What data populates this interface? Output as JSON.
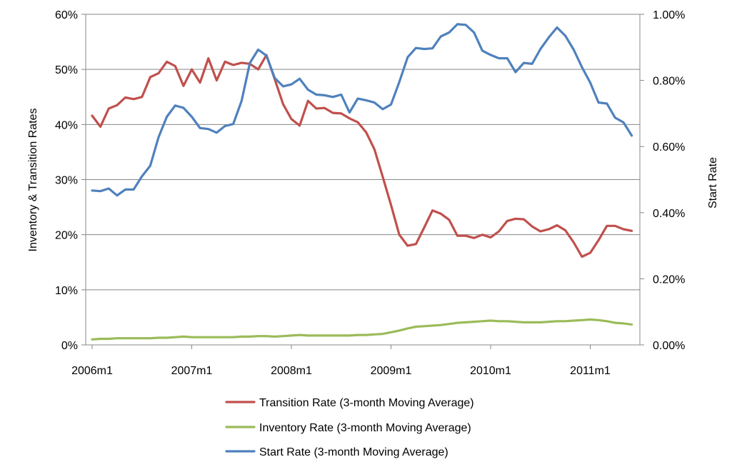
{
  "chart_data": {
    "type": "line",
    "title": "",
    "xlabel": "",
    "ylabel_left": "Inventory & Transition Rates",
    "ylabel_right": "Start Rate",
    "x_start": "2006m1",
    "x_tick_labels": [
      "2006m1",
      "2007m1",
      "2008m1",
      "2009m1",
      "2010m1",
      "2011m1"
    ],
    "ylim_left": [
      0,
      60
    ],
    "ylim_right": [
      0,
      1.0
    ],
    "y_ticks_left": [
      "0%",
      "10%",
      "20%",
      "30%",
      "40%",
      "50%",
      "60%"
    ],
    "y_ticks_right": [
      "0.00%",
      "0.20%",
      "0.40%",
      "0.60%",
      "0.80%",
      "1.00%"
    ],
    "grid": true,
    "legend_position": "bottom",
    "series": [
      {
        "name": "Transition Rate (3-month Moving Average)",
        "axis": "left",
        "color": "#c0504d",
        "values": [
          41.6,
          39.6,
          42.9,
          43.5,
          44.9,
          44.6,
          45.0,
          48.6,
          49.3,
          51.4,
          50.6,
          47.0,
          50.0,
          47.6,
          52.0,
          48.0,
          51.4,
          50.8,
          51.2,
          51.0,
          50.0,
          52.6,
          48.2,
          43.7,
          41.0,
          39.8,
          44.3,
          42.9,
          43.0,
          42.1,
          42.0,
          41.1,
          40.4,
          38.6,
          35.5,
          30.5,
          25.4,
          20.0,
          18.0,
          18.3,
          21.3,
          24.4,
          23.8,
          22.7,
          19.8,
          19.8,
          19.4,
          20.0,
          19.5,
          20.6,
          22.5,
          22.9,
          22.8,
          21.5,
          20.6,
          21.0,
          21.7,
          20.8,
          18.6,
          16.0,
          16.7,
          19.0,
          21.6,
          21.6,
          21.0,
          20.7
        ]
      },
      {
        "name": "Inventory Rate (3-month Moving Average)",
        "axis": "left",
        "color": "#9bbb59",
        "values": [
          1.0,
          1.1,
          1.1,
          1.2,
          1.2,
          1.2,
          1.2,
          1.2,
          1.3,
          1.3,
          1.4,
          1.5,
          1.4,
          1.4,
          1.4,
          1.4,
          1.4,
          1.4,
          1.5,
          1.5,
          1.6,
          1.6,
          1.5,
          1.6,
          1.7,
          1.8,
          1.7,
          1.7,
          1.7,
          1.7,
          1.7,
          1.7,
          1.8,
          1.8,
          1.9,
          2.0,
          2.3,
          2.6,
          3.0,
          3.3,
          3.4,
          3.5,
          3.6,
          3.8,
          4.0,
          4.1,
          4.2,
          4.3,
          4.4,
          4.3,
          4.3,
          4.2,
          4.1,
          4.1,
          4.1,
          4.2,
          4.3,
          4.3,
          4.4,
          4.5,
          4.6,
          4.5,
          4.3,
          4.0,
          3.9,
          3.7
        ]
      },
      {
        "name": "Start Rate (3-month Moving Average)",
        "axis": "right",
        "color": "#4f81bd",
        "values": [
          0.467,
          0.465,
          0.473,
          0.452,
          0.47,
          0.47,
          0.51,
          0.542,
          0.628,
          0.69,
          0.724,
          0.717,
          0.69,
          0.656,
          0.653,
          0.642,
          0.662,
          0.668,
          0.738,
          0.853,
          0.893,
          0.875,
          0.807,
          0.782,
          0.788,
          0.805,
          0.772,
          0.757,
          0.755,
          0.75,
          0.757,
          0.703,
          0.745,
          0.74,
          0.733,
          0.713,
          0.727,
          0.795,
          0.87,
          0.898,
          0.895,
          0.897,
          0.933,
          0.945,
          0.97,
          0.968,
          0.945,
          0.89,
          0.877,
          0.867,
          0.867,
          0.825,
          0.853,
          0.85,
          0.895,
          0.93,
          0.96,
          0.935,
          0.893,
          0.84,
          0.793,
          0.733,
          0.73,
          0.687,
          0.673,
          0.633
        ]
      }
    ]
  }
}
